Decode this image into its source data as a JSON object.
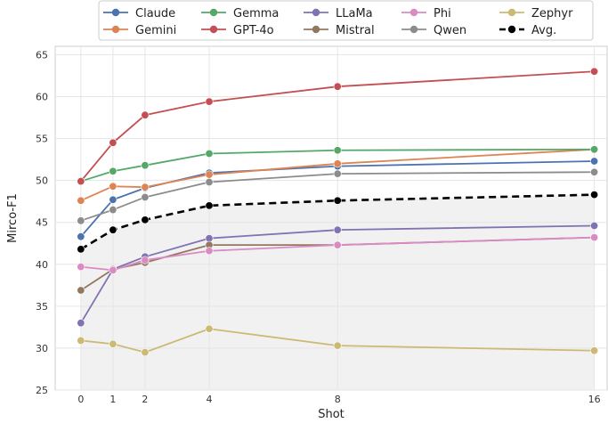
{
  "chart_data": {
    "type": "line",
    "xlabel": "Shot",
    "ylabel": "Mirco-F1",
    "x": [
      0,
      1,
      2,
      4,
      8,
      16
    ],
    "x_tick_labels": [
      "0",
      "1",
      "2",
      "4",
      "8",
      "16"
    ],
    "ylim": [
      25,
      66
    ],
    "y_ticks": [
      25,
      30,
      35,
      40,
      45,
      50,
      55,
      60,
      65
    ],
    "grid": true,
    "legend_position": "top-center",
    "shaded_region": "below Avg. series",
    "series": [
      {
        "name": "Claude",
        "color": "#4c72b0",
        "dashed": false,
        "values": [
          43.3,
          47.7,
          49.1,
          50.9,
          51.7,
          52.3
        ]
      },
      {
        "name": "Gemini",
        "color": "#dd8452",
        "dashed": false,
        "values": [
          47.6,
          49.3,
          49.2,
          50.7,
          52.0,
          53.7
        ]
      },
      {
        "name": "Gemma",
        "color": "#55a868",
        "dashed": false,
        "values": [
          49.9,
          51.1,
          51.8,
          53.2,
          53.6,
          53.7
        ]
      },
      {
        "name": "GPT-4o",
        "color": "#c44e52",
        "dashed": false,
        "values": [
          49.9,
          54.5,
          57.8,
          59.4,
          61.2,
          63.0
        ]
      },
      {
        "name": "LLaMa",
        "color": "#8172b3",
        "dashed": false,
        "values": [
          33.0,
          39.4,
          40.9,
          43.1,
          44.1,
          44.6
        ]
      },
      {
        "name": "Mistral",
        "color": "#937860",
        "dashed": false,
        "values": [
          36.9,
          39.4,
          40.2,
          42.3,
          42.3,
          43.2
        ]
      },
      {
        "name": "Phi",
        "color": "#da8bc3",
        "dashed": false,
        "values": [
          39.7,
          39.3,
          40.5,
          41.6,
          42.3,
          43.2
        ]
      },
      {
        "name": "Qwen",
        "color": "#8c8c8c",
        "dashed": false,
        "values": [
          45.2,
          46.5,
          48.0,
          49.8,
          50.8,
          51.0
        ]
      },
      {
        "name": "Zephyr",
        "color": "#ccb974",
        "dashed": false,
        "values": [
          30.9,
          30.5,
          29.5,
          32.3,
          30.3,
          29.7
        ]
      },
      {
        "name": "Avg.",
        "color": "#000000",
        "dashed": true,
        "values": [
          41.8,
          44.1,
          45.3,
          47.0,
          47.6,
          48.3
        ]
      }
    ]
  }
}
